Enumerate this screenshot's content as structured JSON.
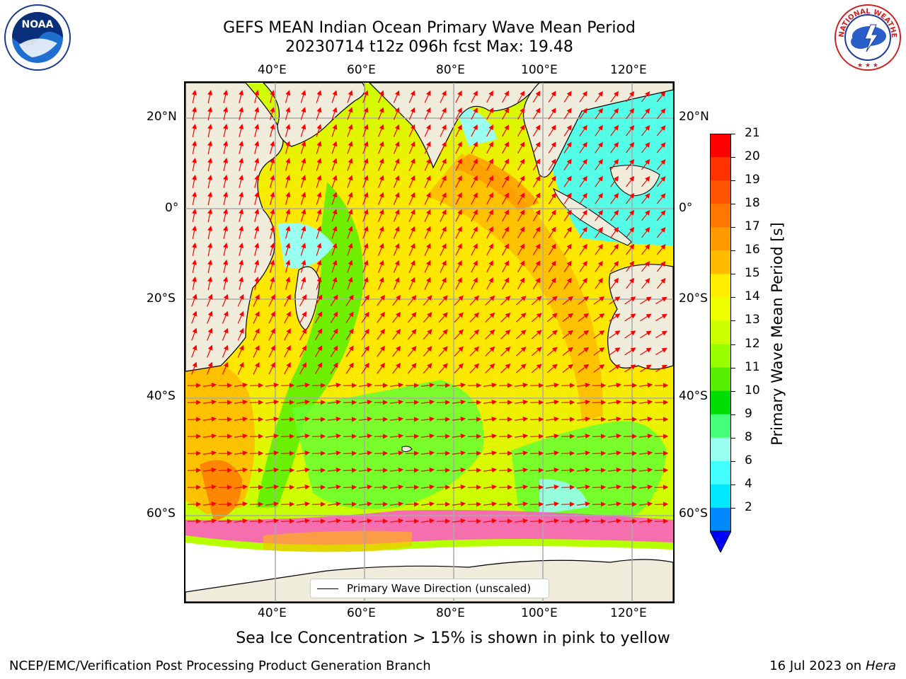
{
  "title": {
    "line1": "GEFS MEAN Indian Ocean Primary Wave Mean Period",
    "line2": "20230714 t12z 096h fcst   Max: 19.48"
  },
  "axes": {
    "lon_labels_top": [
      "40°E",
      "60°E",
      "80°E",
      "100°E",
      "120°E"
    ],
    "lon_labels_bottom": [
      "40°E",
      "60°E",
      "80°E",
      "100°E",
      "120°E"
    ],
    "lat_labels_left": [
      "20°N",
      "0°",
      "20°S",
      "40°S",
      "60°S"
    ],
    "lat_labels_right": [
      "20°N",
      "0°",
      "20°S",
      "40°S",
      "60°S"
    ]
  },
  "legend": {
    "label": "Primary Wave Direction (unscaled)"
  },
  "colorbar": {
    "label": "Primary Wave Mean Period [s]",
    "ticks": [
      "21",
      "20",
      "19",
      "18",
      "17",
      "16",
      "15",
      "14",
      "13",
      "12",
      "11",
      "10",
      "9",
      "8",
      "6",
      "4",
      "2"
    ],
    "colors": [
      "#ff0000",
      "#ff3300",
      "#ff5500",
      "#ff7700",
      "#ff9900",
      "#ffbb00",
      "#ffee00",
      "#eeff00",
      "#ccff00",
      "#99ff00",
      "#55ee00",
      "#00dd00",
      "#44ff77",
      "#99ffee",
      "#44ffff",
      "#00e8ff",
      "#0088ff"
    ],
    "extend_color": "#0000ff"
  },
  "note": "Sea Ice Concentration > 15% is shown in pink to yellow",
  "footer": {
    "left": "NCEP/EMC/Verification Post Processing Product Generation Branch",
    "date": "16 Jul 2023 on ",
    "machine": "Hera"
  },
  "logos": {
    "noaa_text": "NOAA",
    "nws_text": "NATIONAL WEATHER SERVICE"
  }
}
